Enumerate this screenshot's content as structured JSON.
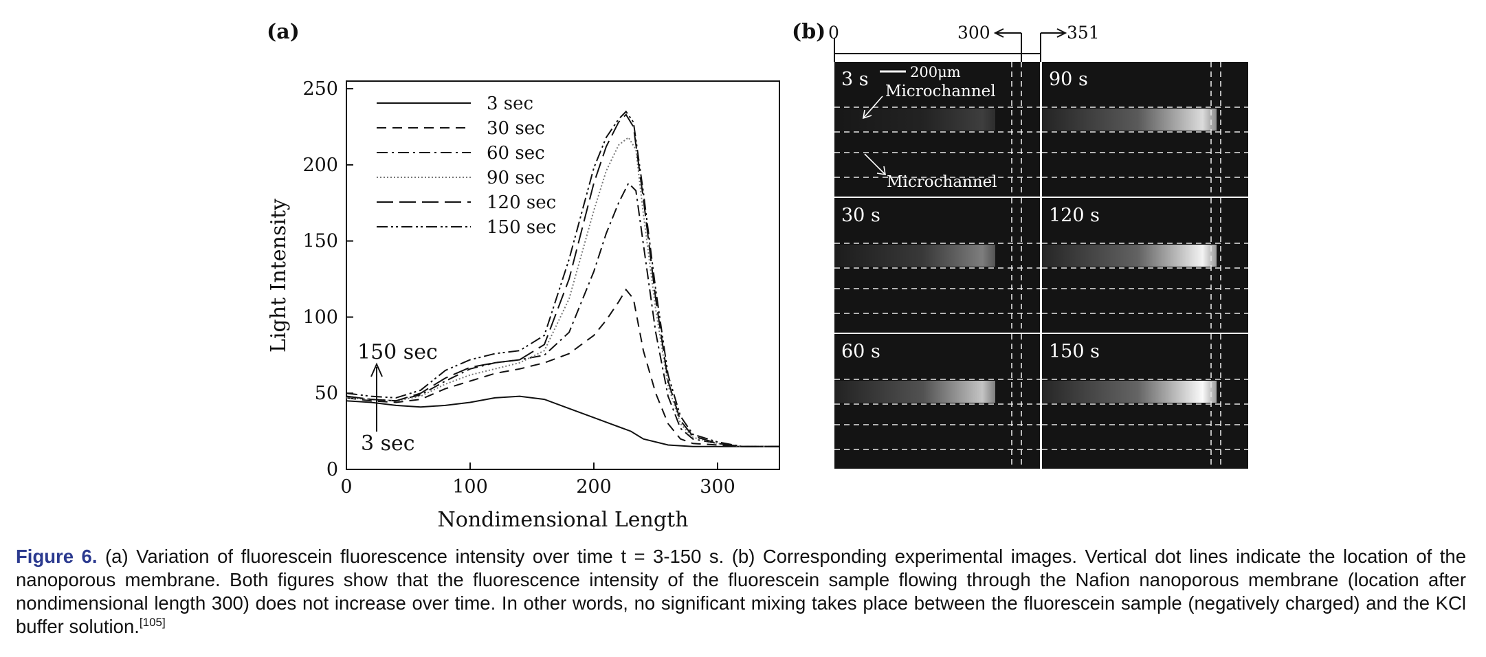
{
  "figure": {
    "panel_a_label": "(a)",
    "panel_b_label": "(b)"
  },
  "chart_data": {
    "type": "line",
    "title": "",
    "xlabel": "Nondimensional Length",
    "ylabel": "Light Intensity",
    "xlim": [
      0,
      350
    ],
    "ylim": [
      0,
      255
    ],
    "xticks": [
      0,
      100,
      200,
      300
    ],
    "yticks": [
      0,
      50,
      100,
      150,
      200,
      250
    ],
    "grid": false,
    "legend_position": "top-left",
    "series": [
      {
        "name": "3 sec",
        "dash": "solid",
        "color": "#111111",
        "points": [
          [
            0,
            45
          ],
          [
            20,
            44
          ],
          [
            40,
            42
          ],
          [
            60,
            41
          ],
          [
            80,
            42
          ],
          [
            100,
            44
          ],
          [
            120,
            47
          ],
          [
            140,
            48
          ],
          [
            160,
            46
          ],
          [
            180,
            40
          ],
          [
            200,
            34
          ],
          [
            220,
            28
          ],
          [
            230,
            25
          ],
          [
            240,
            20
          ],
          [
            260,
            16
          ],
          [
            280,
            15
          ],
          [
            300,
            15
          ],
          [
            320,
            15
          ],
          [
            350,
            15
          ]
        ]
      },
      {
        "name": "30 sec",
        "dash": "14,9",
        "color": "#111111",
        "points": [
          [
            0,
            47
          ],
          [
            20,
            45
          ],
          [
            40,
            44
          ],
          [
            60,
            46
          ],
          [
            80,
            53
          ],
          [
            100,
            58
          ],
          [
            120,
            63
          ],
          [
            140,
            66
          ],
          [
            160,
            70
          ],
          [
            180,
            76
          ],
          [
            200,
            88
          ],
          [
            210,
            98
          ],
          [
            220,
            110
          ],
          [
            226,
            118
          ],
          [
            232,
            112
          ],
          [
            240,
            78
          ],
          [
            250,
            50
          ],
          [
            260,
            30
          ],
          [
            270,
            20
          ],
          [
            280,
            17
          ],
          [
            300,
            16
          ],
          [
            320,
            15
          ],
          [
            350,
            15
          ]
        ]
      },
      {
        "name": "60 sec",
        "dash": "16,6,3,6",
        "color": "#111111",
        "points": [
          [
            0,
            48
          ],
          [
            20,
            46
          ],
          [
            40,
            45
          ],
          [
            60,
            49
          ],
          [
            80,
            58
          ],
          [
            100,
            66
          ],
          [
            120,
            70
          ],
          [
            140,
            72
          ],
          [
            160,
            75
          ],
          [
            180,
            90
          ],
          [
            200,
            130
          ],
          [
            210,
            155
          ],
          [
            220,
            175
          ],
          [
            228,
            188
          ],
          [
            234,
            183
          ],
          [
            240,
            148
          ],
          [
            250,
            90
          ],
          [
            260,
            48
          ],
          [
            270,
            27
          ],
          [
            280,
            20
          ],
          [
            300,
            17
          ],
          [
            320,
            15
          ],
          [
            350,
            15
          ]
        ]
      },
      {
        "name": "90 sec",
        "dash": "2,3",
        "color": "#777777",
        "points": [
          [
            0,
            47
          ],
          [
            20,
            46
          ],
          [
            40,
            45
          ],
          [
            60,
            48
          ],
          [
            80,
            56
          ],
          [
            100,
            62
          ],
          [
            120,
            66
          ],
          [
            140,
            70
          ],
          [
            160,
            78
          ],
          [
            180,
            112
          ],
          [
            200,
            170
          ],
          [
            210,
            196
          ],
          [
            220,
            213
          ],
          [
            228,
            218
          ],
          [
            234,
            210
          ],
          [
            240,
            168
          ],
          [
            250,
            105
          ],
          [
            260,
            55
          ],
          [
            270,
            30
          ],
          [
            280,
            21
          ],
          [
            300,
            17
          ],
          [
            320,
            15
          ],
          [
            350,
            15
          ]
        ]
      },
      {
        "name": "120 sec",
        "dash": "24,9",
        "color": "#111111",
        "points": [
          [
            0,
            48
          ],
          [
            20,
            46
          ],
          [
            40,
            45
          ],
          [
            60,
            50
          ],
          [
            80,
            60
          ],
          [
            100,
            67
          ],
          [
            120,
            70
          ],
          [
            140,
            72
          ],
          [
            160,
            82
          ],
          [
            180,
            125
          ],
          [
            200,
            188
          ],
          [
            210,
            212
          ],
          [
            220,
            228
          ],
          [
            226,
            233
          ],
          [
            232,
            225
          ],
          [
            240,
            178
          ],
          [
            250,
            112
          ],
          [
            260,
            58
          ],
          [
            270,
            32
          ],
          [
            280,
            22
          ],
          [
            300,
            17
          ],
          [
            320,
            15
          ],
          [
            350,
            15
          ]
        ]
      },
      {
        "name": "150 sec",
        "dash": "16,5,3,4,3,5",
        "color": "#111111",
        "points": [
          [
            0,
            50
          ],
          [
            20,
            48
          ],
          [
            40,
            47
          ],
          [
            60,
            52
          ],
          [
            80,
            65
          ],
          [
            100,
            72
          ],
          [
            120,
            76
          ],
          [
            140,
            78
          ],
          [
            160,
            88
          ],
          [
            180,
            138
          ],
          [
            200,
            198
          ],
          [
            210,
            218
          ],
          [
            220,
            230
          ],
          [
            226,
            235
          ],
          [
            232,
            228
          ],
          [
            240,
            182
          ],
          [
            250,
            118
          ],
          [
            260,
            62
          ],
          [
            270,
            35
          ],
          [
            280,
            23
          ],
          [
            300,
            18
          ],
          [
            320,
            15
          ],
          [
            350,
            15
          ]
        ]
      }
    ],
    "annotations": [
      "150 sec",
      "3 sec"
    ]
  },
  "images": {
    "scale_top": {
      "start": "0",
      "left_mark": "300",
      "right_mark": "351"
    },
    "scale_bar": "200μm",
    "channel_label_upper": "Microchannel",
    "channel_label_lower": "Microchannel",
    "frames": [
      {
        "label": "3 s",
        "intensity": 0.18
      },
      {
        "label": "90 s",
        "intensity": 0.85
      },
      {
        "label": "30 s",
        "intensity": 0.45
      },
      {
        "label": "120 s",
        "intensity": 0.95
      },
      {
        "label": "60 s",
        "intensity": 0.75
      },
      {
        "label": "150 s",
        "intensity": 0.98
      }
    ]
  },
  "caption": {
    "label": "Figure 6.",
    "text": " (a) Variation of fluorescein fluorescence intensity over time t = 3-150 s. (b) Corresponding experimental images. Vertical dot lines indicate the location of the nanoporous membrane. Both figures show that the fluorescence intensity of the fluorescein sample flowing through the Nafion nanoporous membrane (location after nondimensional length 300) does not increase over time. In other words, no significant mixing takes place between the fluorescein sample (negatively charged) and the KCl buffer solution.",
    "ref": "[105]"
  }
}
